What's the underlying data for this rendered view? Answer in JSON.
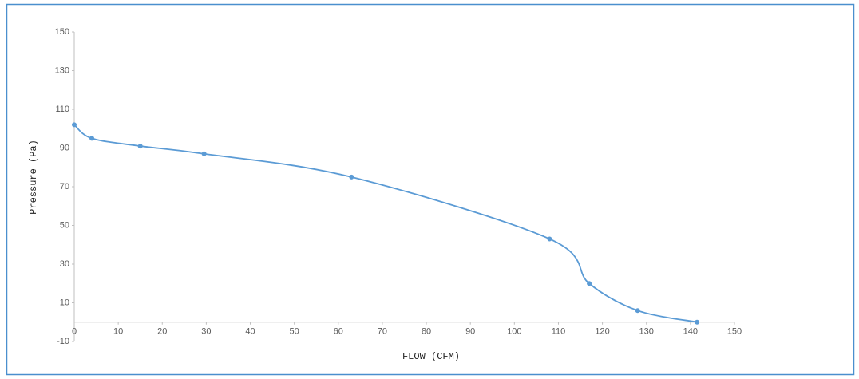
{
  "chart_data": {
    "type": "line",
    "x_label": "FLOW (CFM)",
    "y_label": "Pressure (Pa)",
    "x": [
      0,
      4,
      15,
      29.5,
      63,
      108,
      117,
      128,
      141.5
    ],
    "values": [
      102,
      95,
      91,
      87,
      75,
      43,
      20,
      6,
      0
    ],
    "color": "#5b9bd5",
    "smooth": true,
    "xlim": [
      0,
      150
    ],
    "xticks": [
      0,
      10,
      20,
      30,
      40,
      50,
      60,
      70,
      80,
      90,
      100,
      110,
      120,
      130,
      140,
      150
    ],
    "ylim": [
      -10,
      150
    ],
    "yticks": [
      -10,
      10,
      30,
      50,
      70,
      90,
      110,
      130,
      150
    ]
  }
}
